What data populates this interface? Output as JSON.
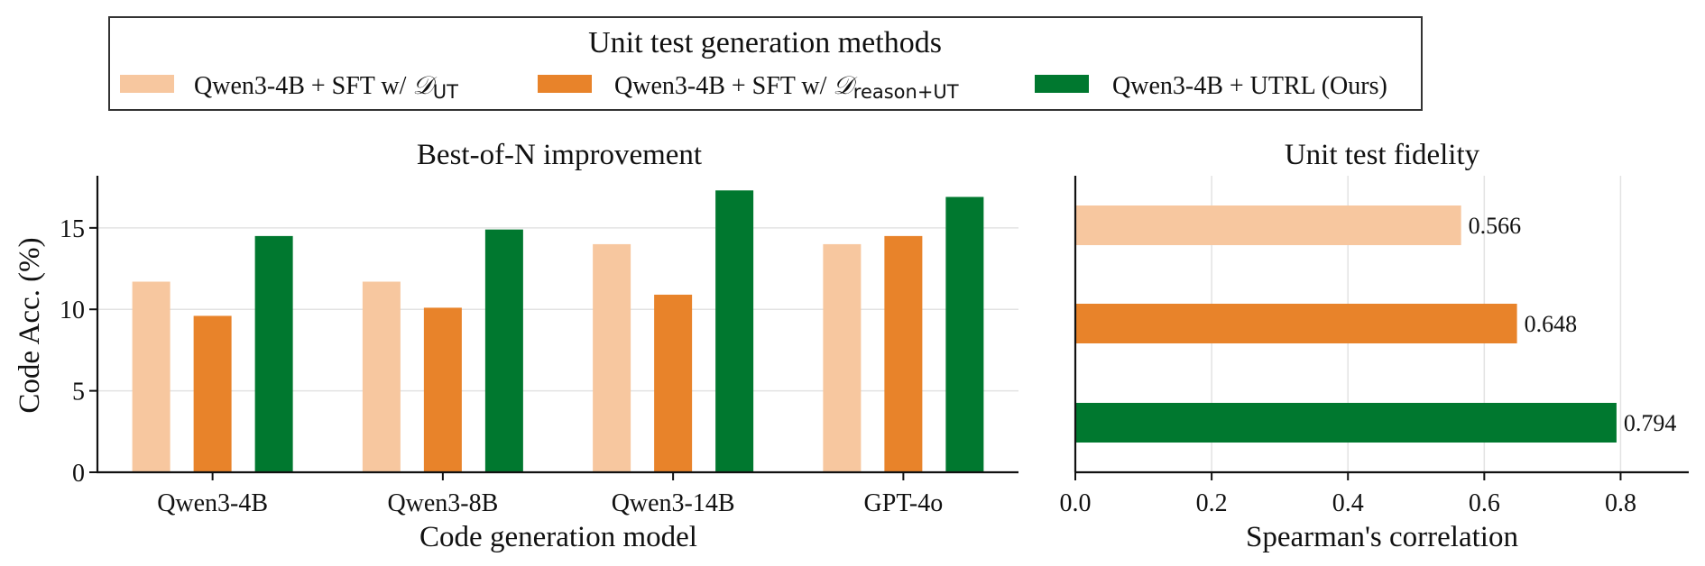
{
  "colors": {
    "sft_ut": "#f7c79f",
    "sft_reason_ut": "#e8832a",
    "utrl": "#00782f"
  },
  "legend": {
    "title": "Unit test generation methods",
    "entries": [
      {
        "prefix": "Qwen3-4B + SFT w/ ",
        "math": "𝒟",
        "sub": "UT",
        "suffix": ""
      },
      {
        "prefix": "Qwen3-4B + SFT w/ ",
        "math": "𝒟",
        "sub": "reason+UT",
        "suffix": ""
      },
      {
        "prefix": "Qwen3-4B + UTRL (Ours)",
        "math": "",
        "sub": "",
        "suffix": ""
      }
    ]
  },
  "chart_data": [
    {
      "type": "bar",
      "title": "Best-of-N improvement",
      "xlabel": "Code generation model",
      "ylabel": "Code Acc. (%)",
      "categories": [
        "Qwen3-4B",
        "Qwen3-8B",
        "Qwen3-14B",
        "GPT-4o"
      ],
      "ylim": [
        0,
        18.2
      ],
      "yticks": [
        0,
        5,
        10,
        15
      ],
      "grid": "y",
      "series": [
        {
          "values": [
            11.7,
            11.7,
            14.0,
            14.0
          ]
        },
        {
          "values": [
            9.6,
            10.1,
            10.9,
            14.5
          ]
        },
        {
          "values": [
            14.5,
            14.9,
            17.3,
            16.9
          ]
        }
      ]
    },
    {
      "type": "bar",
      "orientation": "horizontal",
      "title": "Unit test fidelity",
      "xlabel": "Spearman's correlation",
      "xlim": [
        0,
        0.9
      ],
      "xticks": [
        "0.0",
        "0.2",
        "0.4",
        "0.6",
        "0.8"
      ],
      "grid": "x",
      "values": [
        0.566,
        0.648,
        0.794
      ],
      "data_labels": [
        "0.566",
        "0.648",
        "0.794"
      ]
    }
  ]
}
